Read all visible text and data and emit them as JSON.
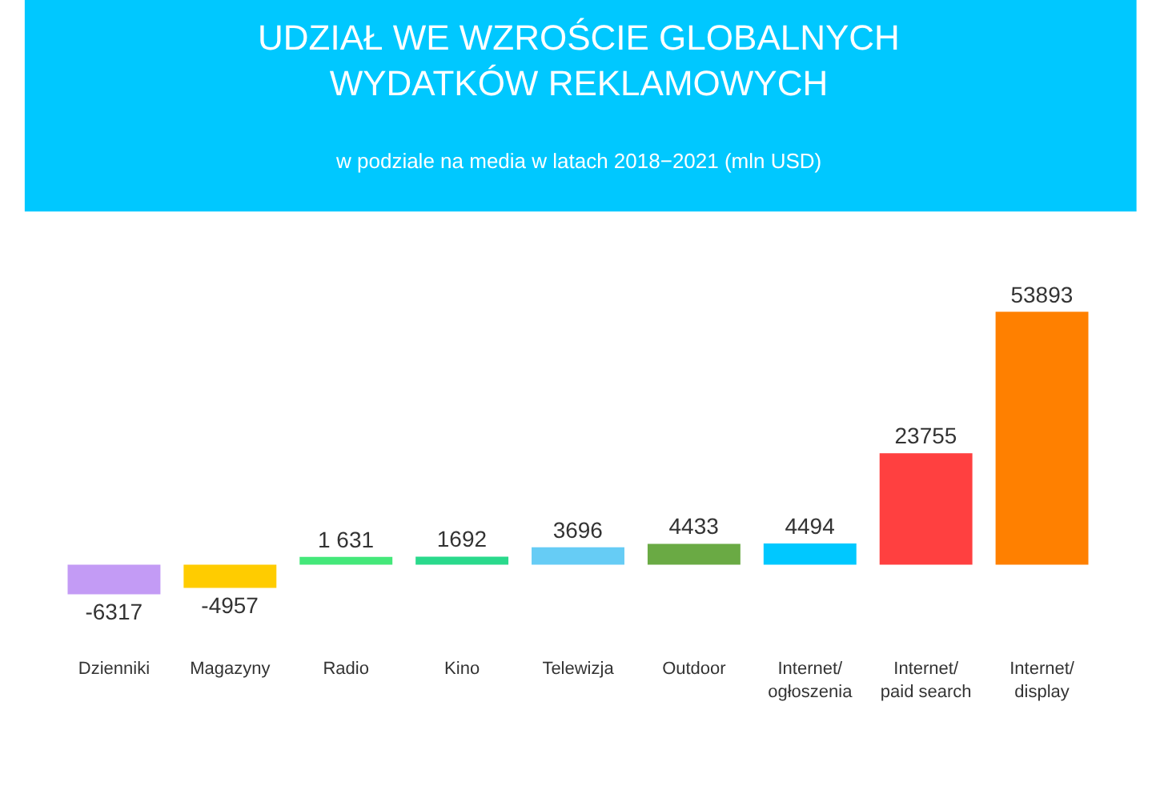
{
  "chart_data": {
    "type": "bar",
    "title": "UDZIAŁ WE WZROŚCIE GLOBALNYCH\nWYDATKÓW REKLAMOWYCH",
    "subtitle": "w podziale na media w latach 2018−2021 (mln USD)",
    "categories": [
      "Dzienniki",
      "Magazyny",
      "Radio",
      "Kino",
      "Telewizja",
      "Outdoor",
      "Internet/\nogłoszenia",
      "Internet/\npaid search",
      "Internet/\ndisplay"
    ],
    "values": [
      -6317,
      -4957,
      1631,
      1692,
      3696,
      4433,
      4494,
      23755,
      53893
    ],
    "colors": [
      "#c39bf5",
      "#ffcc00",
      "#44e87a",
      "#2ad98c",
      "#66ccf5",
      "#6aaa44",
      "#00c8ff",
      "#ff4040",
      "#ff8000"
    ],
    "value_labels": [
      "-6317",
      "-4957",
      "1 631",
      "1692",
      "3696",
      "4433",
      "4494",
      "23755",
      "53893"
    ],
    "legend": false
  }
}
